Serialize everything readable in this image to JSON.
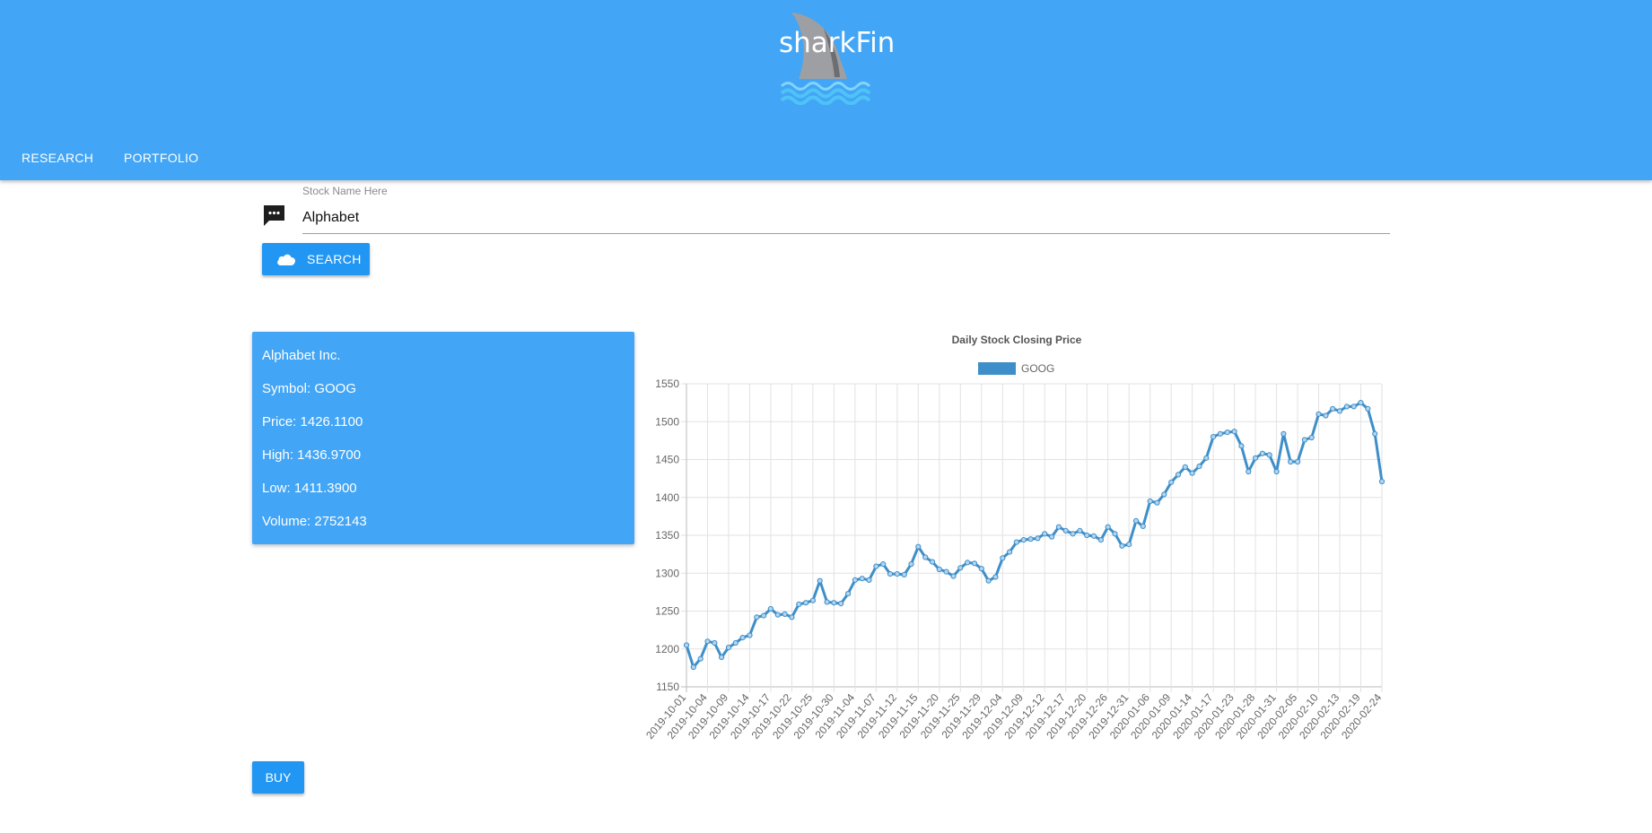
{
  "header": {
    "brand": "sharkFin",
    "nav": [
      {
        "label": "RESEARCH"
      },
      {
        "label": "PORTFOLIO"
      }
    ]
  },
  "search": {
    "label": "Stock Name Here",
    "value": "Alphabet",
    "button_label": "SEARCH"
  },
  "info": {
    "name": "Alphabet Inc.",
    "symbol": "Symbol: GOOG",
    "price": "Price: 1426.1100",
    "high": "High: 1436.9700",
    "low": "Low: 1411.3900",
    "volume": "Volume: 2752143"
  },
  "buy_label": "BUY",
  "colors": {
    "appbar": "#42a5f5",
    "button": "#2196f3",
    "line": "#3e8fc9"
  },
  "chart_data": {
    "type": "line",
    "title": "Daily Stock Closing Price",
    "legend": "GOOG",
    "legend_position": "top-center",
    "grid": true,
    "ylim": [
      1150,
      1550
    ],
    "yticks": [
      1150,
      1200,
      1250,
      1300,
      1350,
      1400,
      1450,
      1500,
      1550
    ],
    "xtick_labels": [
      "2019-10-01",
      "2019-10-04",
      "2019-10-09",
      "2019-10-14",
      "2019-10-17",
      "2019-10-22",
      "2019-10-25",
      "2019-10-30",
      "2019-11-04",
      "2019-11-07",
      "2019-11-12",
      "2019-11-15",
      "2019-11-20",
      "2019-11-25",
      "2019-11-29",
      "2019-12-04",
      "2019-12-09",
      "2019-12-12",
      "2019-12-17",
      "2019-12-20",
      "2019-12-26",
      "2019-12-31",
      "2020-01-06",
      "2020-01-09",
      "2020-01-14",
      "2020-01-17",
      "2020-01-23",
      "2020-01-28",
      "2020-01-31",
      "2020-02-05",
      "2020-02-10",
      "2020-02-13",
      "2020-02-19",
      "2020-02-24"
    ],
    "series": [
      {
        "name": "GOOG",
        "values": [
          1205,
          1176,
          1187,
          1210,
          1208,
          1189,
          1202,
          1208,
          1215,
          1218,
          1242,
          1244,
          1253,
          1245,
          1246,
          1242,
          1259,
          1261,
          1264,
          1290,
          1262,
          1261,
          1260,
          1273,
          1291,
          1293,
          1291,
          1309,
          1312,
          1299,
          1299,
          1298,
          1312,
          1335,
          1321,
          1315,
          1305,
          1302,
          1296,
          1307,
          1314,
          1313,
          1306,
          1290,
          1295,
          1320,
          1328,
          1341,
          1344,
          1345,
          1346,
          1352,
          1348,
          1361,
          1356,
          1352,
          1356,
          1350,
          1349,
          1344,
          1361,
          1352,
          1336,
          1338,
          1369,
          1362,
          1395,
          1393,
          1404,
          1420,
          1430,
          1440,
          1432,
          1441,
          1452,
          1480,
          1484,
          1486,
          1487,
          1468,
          1434,
          1452,
          1458,
          1456,
          1434,
          1484,
          1447,
          1447,
          1476,
          1479,
          1510,
          1508,
          1517,
          1514,
          1520,
          1520,
          1525,
          1517,
          1484,
          1421
        ]
      }
    ]
  }
}
